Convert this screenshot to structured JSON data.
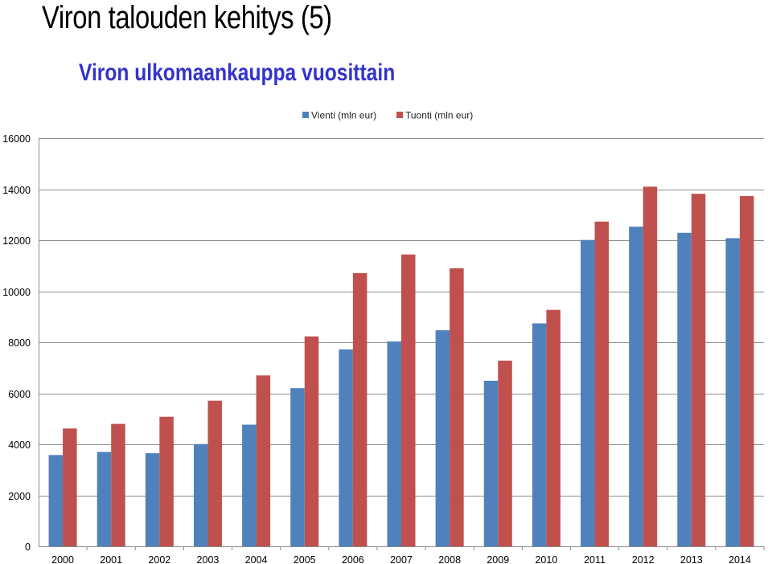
{
  "page": {
    "title": "Viron talouden kehitys (5)"
  },
  "chart_data": {
    "type": "bar",
    "title": "Viron ulkomaankauppa vuosittain",
    "xlabel": "",
    "ylabel": "",
    "ylim": [
      0,
      16000
    ],
    "yticks": [
      0,
      2000,
      4000,
      6000,
      8000,
      10000,
      12000,
      14000,
      16000
    ],
    "grid": true,
    "legend_position": "top",
    "categories": [
      "2000",
      "2001",
      "2002",
      "2003",
      "2004",
      "2005",
      "2006",
      "2007",
      "2008",
      "2009",
      "2010",
      "2011",
      "2012",
      "2013",
      "2014"
    ],
    "series": [
      {
        "name": "Vienti (mln eur)",
        "color": "#4f81bd",
        "values": [
          3580,
          3700,
          3650,
          4010,
          4770,
          6200,
          7720,
          8030,
          8470,
          6490,
          8740,
          12010,
          12530,
          12290,
          12080
        ]
      },
      {
        "name": "Tuonti (mln eur)",
        "color": "#c0504d",
        "values": [
          4620,
          4800,
          5080,
          5710,
          6700,
          8230,
          10710,
          11440,
          10900,
          7280,
          9270,
          12730,
          14100,
          13820,
          13730
        ]
      }
    ]
  }
}
